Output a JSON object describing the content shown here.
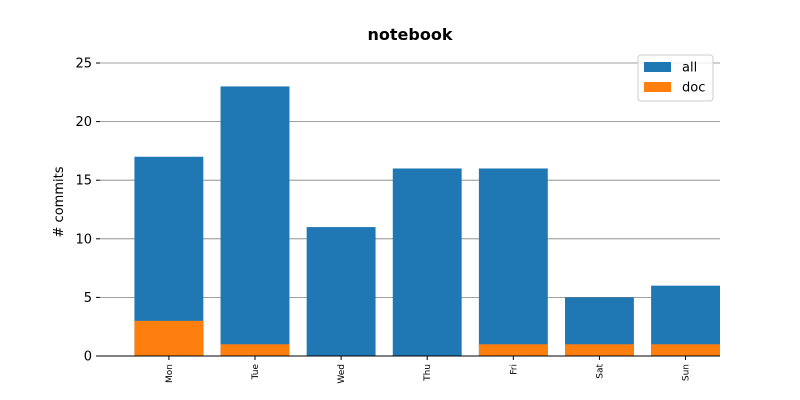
{
  "chart_data": {
    "type": "bar",
    "title": "notebook",
    "xlabel": "",
    "ylabel": "# commits",
    "categories": [
      "Mon",
      "Tue",
      "Wed",
      "Thu",
      "Fri",
      "Sat",
      "Sun"
    ],
    "series": [
      {
        "name": "all",
        "values": [
          17,
          23,
          11,
          16,
          16,
          5,
          6
        ],
        "color": "#1f77b4"
      },
      {
        "name": "doc",
        "values": [
          3,
          1,
          0,
          0,
          1,
          1,
          1
        ],
        "color": "#ff7f0e"
      }
    ],
    "ylim": [
      0,
      25
    ],
    "yticks": [
      0,
      5,
      10,
      15,
      20,
      25
    ],
    "grid": "horizontal",
    "legend_position": "top-right",
    "overlap": true
  }
}
